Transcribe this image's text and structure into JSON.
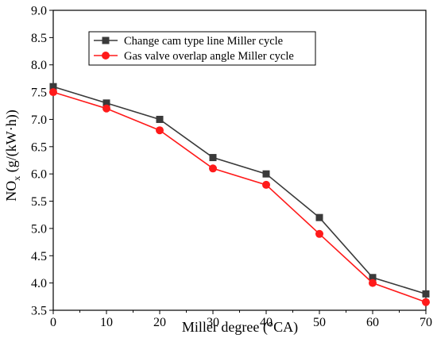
{
  "chart_data": {
    "type": "line",
    "x": [
      0,
      10,
      20,
      30,
      40,
      50,
      60,
      70
    ],
    "series": [
      {
        "name": "Change cam type line Miller cycle",
        "values": [
          7.6,
          7.3,
          7.0,
          6.3,
          6.0,
          5.2,
          4.1,
          3.8
        ],
        "color": "#3a3a3a",
        "marker": "square"
      },
      {
        "name": "Gas valve overlap angle Miller cycle",
        "values": [
          7.5,
          7.2,
          6.8,
          6.1,
          5.8,
          4.9,
          4.0,
          3.65
        ],
        "color": "#ff1a1a",
        "marker": "circle"
      }
    ],
    "xlabel": "Miller degree (°CA)",
    "ylabel": {
      "base": "NO",
      "sub": "x",
      "rest": " (g/(kW·h))"
    },
    "xlim": [
      0,
      70
    ],
    "ylim": [
      3.5,
      9.0
    ],
    "xticks": [
      0,
      10,
      20,
      30,
      40,
      50,
      60,
      70
    ],
    "yticks": [
      3.5,
      4.0,
      4.5,
      5.0,
      5.5,
      6.0,
      6.5,
      7.0,
      7.5,
      8.0,
      8.5,
      9.0
    ],
    "ytick_labels": [
      "3.5",
      "4.0",
      "4.5",
      "5.0",
      "5.5",
      "6.0",
      "6.5",
      "7.0",
      "7.5",
      "8.0",
      "8.5",
      "9.0"
    ],
    "grid": false,
    "legend_position": "top-center"
  }
}
